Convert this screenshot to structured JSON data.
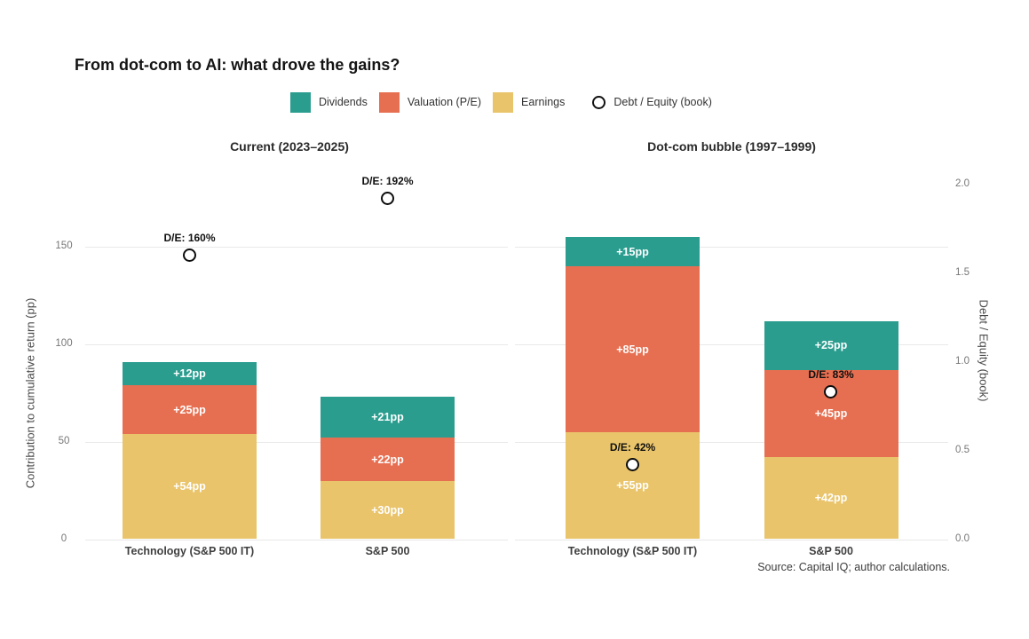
{
  "title": "From dot-com to AI: what drove the gains?",
  "source_note": "Source: Capital IQ; author calculations.",
  "legend": {
    "position": "top",
    "items": [
      {
        "label": "Dividends",
        "type": "square",
        "color": "#2a9d8f"
      },
      {
        "label": "Valuation (P/E)",
        "type": "square",
        "color": "#e76f51"
      },
      {
        "label": "Earnings",
        "type": "square",
        "color": "#e9c46a"
      },
      {
        "label": "Debt / Equity (book)",
        "type": "open-circle",
        "color": "#111111"
      }
    ]
  },
  "colors": {
    "dividends": "#2a9d8f",
    "valuation": "#e76f51",
    "earnings": "#e9c46a",
    "de_marker_stroke": "#0d0d0d",
    "de_marker_fill": "#ffffff",
    "gridline": "#e9e9e9"
  },
  "left_axis": {
    "label": "Contribution to cumulative return (pp)",
    "ticks": [
      {
        "value": 0,
        "label": "0"
      },
      {
        "value": 50,
        "label": "50"
      },
      {
        "value": 100,
        "label": "100"
      },
      {
        "value": 150,
        "label": "150"
      }
    ]
  },
  "right_axis": {
    "label": "Debt / Equity (book)",
    "ticks": [
      {
        "value": 0.0,
        "label": "0.0"
      },
      {
        "value": 0.5,
        "label": "0.5"
      },
      {
        "value": 1.0,
        "label": "1.0"
      },
      {
        "value": 1.5,
        "label": "1.5"
      },
      {
        "value": 2.0,
        "label": "2.0"
      }
    ]
  },
  "chart_data": {
    "type": "bar",
    "stacked": true,
    "grid": true,
    "ylabel": "Contribution to cumulative return (pp)",
    "y2label": "Debt / Equity (book)",
    "ylim": [
      0,
      168
    ],
    "y2lim": [
      0,
      2.0
    ],
    "series_order_bottom_to_top": [
      "Earnings",
      "Valuation (P/E)",
      "Dividends"
    ],
    "panels": [
      {
        "title": "Current (2023–2025)",
        "bars": [
          {
            "category": "Technology (S&P 500 IT)",
            "total_pp": 91,
            "segments": [
              {
                "series": "Earnings",
                "value": 54,
                "label": "+54pp"
              },
              {
                "series": "Valuation (P/E)",
                "value": 25,
                "label": "+25pp"
              },
              {
                "series": "Dividends",
                "value": 12,
                "label": "+12pp"
              }
            ],
            "debt_equity": {
              "value": 1.6,
              "label": "D/E: 160%"
            }
          },
          {
            "category": "S&P 500",
            "total_pp": 73,
            "segments": [
              {
                "series": "Earnings",
                "value": 30,
                "label": "+30pp"
              },
              {
                "series": "Valuation (P/E)",
                "value": 22,
                "label": "+22pp"
              },
              {
                "series": "Dividends",
                "value": 21,
                "label": "+21pp"
              }
            ],
            "debt_equity": {
              "value": 1.92,
              "label": "D/E: 192%"
            }
          }
        ]
      },
      {
        "title": "Dot-com bubble (1997–1999)",
        "bars": [
          {
            "category": "Technology (S&P 500 IT)",
            "total_pp": 155,
            "segments": [
              {
                "series": "Earnings",
                "value": 55,
                "label": "+55pp"
              },
              {
                "series": "Valuation (P/E)",
                "value": 85,
                "label": "+85pp"
              },
              {
                "series": "Dividends",
                "value": 15,
                "label": "+15pp"
              }
            ],
            "debt_equity": {
              "value": 0.42,
              "label": "D/E: 42%"
            }
          },
          {
            "category": "S&P 500",
            "total_pp": 112,
            "segments": [
              {
                "series": "Earnings",
                "value": 42,
                "label": "+42pp"
              },
              {
                "series": "Valuation (P/E)",
                "value": 45,
                "label": "+45pp"
              },
              {
                "series": "Dividends",
                "value": 25,
                "label": "+25pp"
              }
            ],
            "debt_equity": {
              "value": 0.83,
              "label": "D/E: 83%"
            }
          }
        ]
      }
    ]
  }
}
